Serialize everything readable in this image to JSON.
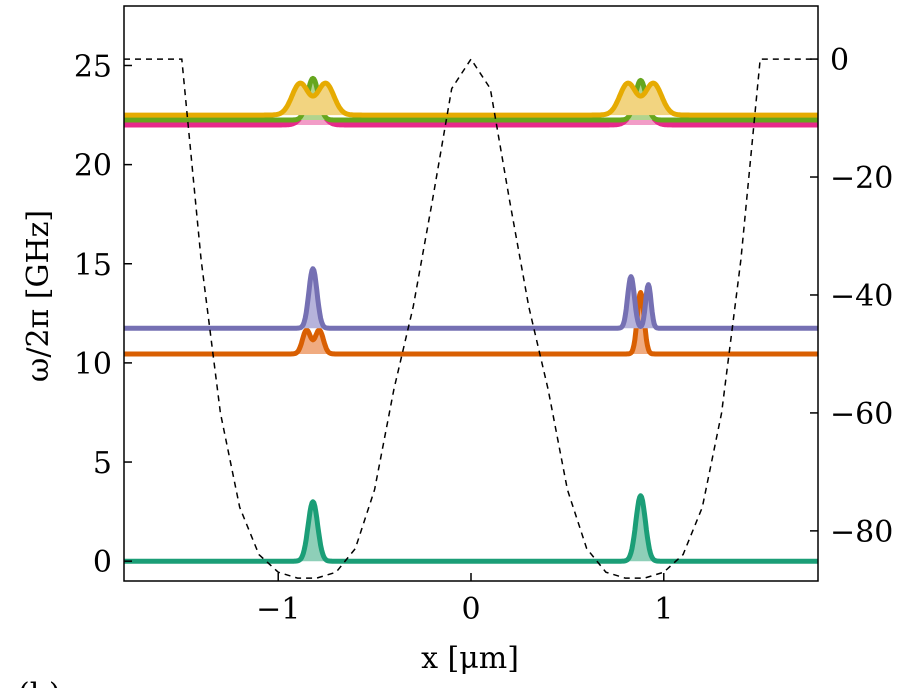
{
  "chart_data": {
    "type": "line",
    "title": "",
    "xlabel": "x [μm]",
    "ylabel": "ω/2π [GHz]",
    "xlim": [
      -1.8,
      1.8
    ],
    "ylim": [
      -1,
      28
    ],
    "y2lim": [
      -88.5,
      9
    ],
    "grid": false,
    "legend": "none",
    "x_ticks": [
      -1,
      0,
      1
    ],
    "x_tick_labels": [
      "−1",
      "0",
      "1"
    ],
    "y_ticks": [
      0,
      5,
      10,
      15,
      20,
      25
    ],
    "y_tick_labels": [
      "0",
      "5",
      "10",
      "15",
      "20",
      "25"
    ],
    "y2_ticks": [
      0,
      -20,
      -40,
      -60,
      -80
    ],
    "y2_tick_labels": [
      "0",
      "−20",
      "−40",
      "−60",
      "−80"
    ],
    "panel_tag": "(b)",
    "potential": {
      "axis": "right",
      "style": "dashed",
      "color": "#000000",
      "x": [
        -1.8,
        -1.5,
        -1.4,
        -1.3,
        -1.2,
        -1.1,
        -1.0,
        -0.9,
        -0.8,
        -0.7,
        -0.6,
        -0.5,
        -0.4,
        -0.3,
        -0.2,
        -0.1,
        0.0,
        0.1,
        0.2,
        0.3,
        0.4,
        0.5,
        0.6,
        0.7,
        0.8,
        0.9,
        1.0,
        1.1,
        1.2,
        1.3,
        1.4,
        1.5,
        1.8
      ],
      "value": [
        0,
        0,
        -34,
        -60,
        -76,
        -84,
        -87,
        -88,
        -88,
        -87,
        -83,
        -73,
        -56,
        -42,
        -24,
        -5,
        0,
        -5,
        -24,
        -42,
        -56,
        -73,
        -83,
        -87,
        -88,
        -88,
        -87,
        -84,
        -76,
        -60,
        -34,
        0,
        0
      ]
    },
    "series": [
      {
        "baseline": 0.0,
        "color": "#1b9e77",
        "fill": "#8ecfb8",
        "peaks": [
          {
            "x": -0.82,
            "height": 3.0,
            "width": 0.035
          },
          {
            "x": 0.88,
            "height": 3.3,
            "width": 0.035
          }
        ]
      },
      {
        "baseline": 10.45,
        "color": "#d95f02",
        "fill": "#f0ab80",
        "peaks": [
          {
            "x": -0.82,
            "height": 1.2,
            "width": 0.03,
            "double": true
          },
          {
            "x": 0.88,
            "height": 3.1,
            "width": 0.025
          }
        ]
      },
      {
        "baseline": 11.75,
        "color": "#7570b3",
        "fill": "#b6b3db",
        "peaks": [
          {
            "x": -0.82,
            "height": 3.0,
            "width": 0.03
          },
          {
            "x": 0.83,
            "height": 2.6,
            "width": 0.025
          },
          {
            "x": 0.92,
            "height": 2.2,
            "width": 0.02
          }
        ]
      },
      {
        "baseline": 22.0,
        "color": "#e7298a",
        "fill": "#f29cc7",
        "peaks": [
          {
            "x": -0.82,
            "height": 1.2,
            "width": 0.06
          },
          {
            "x": 0.88,
            "height": 1.2,
            "width": 0.06
          }
        ]
      },
      {
        "baseline": 22.25,
        "color": "#66a61e",
        "fill": "#b1d48e",
        "peaks": [
          {
            "x": -0.82,
            "height": 2.1,
            "width": 0.04
          },
          {
            "x": 0.88,
            "height": 2.0,
            "width": 0.04
          }
        ]
      },
      {
        "baseline": 22.5,
        "color": "#e6ab02",
        "fill": "#f2d480",
        "peaks": [
          {
            "x": -0.82,
            "height": 1.6,
            "width": 0.06,
            "double": true
          },
          {
            "x": 0.88,
            "height": 1.6,
            "width": 0.06,
            "double": true
          }
        ]
      }
    ]
  }
}
